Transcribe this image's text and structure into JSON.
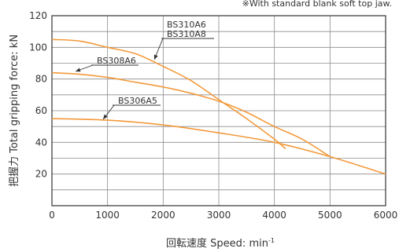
{
  "chart_data": {
    "type": "line",
    "note": "※With standard blank soft top jaw.",
    "xlabel_main": "回転速度 Speed: min",
    "xlabel_sup": "-1",
    "ylabel": "把握力 Total gripping force: kN",
    "xlim": [
      0,
      6000
    ],
    "ylim": [
      0,
      120
    ],
    "xticks": [
      0,
      1000,
      2000,
      3000,
      4000,
      5000,
      6000
    ],
    "yticks": [
      20,
      40,
      60,
      80,
      100,
      120
    ],
    "grid": true,
    "line_color": "#f39a3c",
    "series": [
      {
        "name": "BS310A6 / BS310A8",
        "x": [
          0,
          500,
          1000,
          1500,
          2000,
          2500,
          3000,
          3500,
          4000,
          4200
        ],
        "y": [
          105,
          104,
          100,
          96,
          88,
          79,
          67,
          55,
          42,
          36
        ]
      },
      {
        "name": "BS308A6",
        "x": [
          0,
          500,
          1000,
          1500,
          2000,
          2500,
          3000,
          3500,
          4000,
          4500,
          5000
        ],
        "y": [
          84,
          83,
          81,
          78,
          75,
          71,
          66,
          59,
          50,
          42,
          31
        ]
      },
      {
        "name": "BS306A5",
        "x": [
          0,
          1000,
          2000,
          3000,
          4000,
          5000,
          6000
        ],
        "y": [
          55,
          54,
          51,
          46,
          40,
          31,
          20
        ]
      }
    ],
    "labels": [
      {
        "lines": [
          "BS310A6",
          "BS310A8"
        ],
        "series": 0
      },
      {
        "lines": [
          "BS308A6"
        ],
        "series": 1
      },
      {
        "lines": [
          "BS306A5"
        ],
        "series": 2
      }
    ]
  }
}
